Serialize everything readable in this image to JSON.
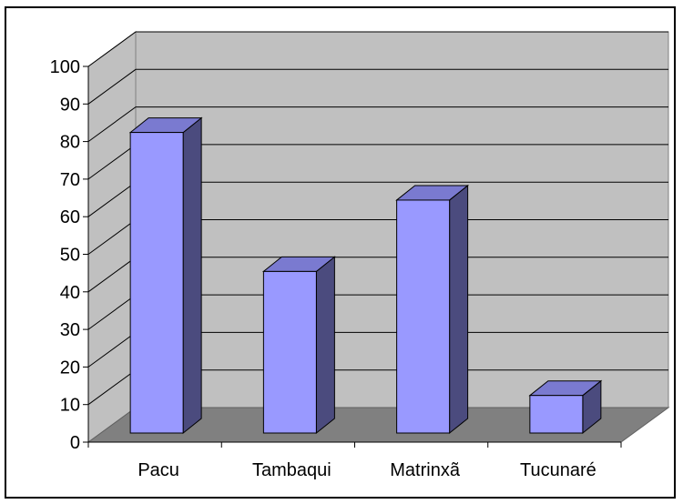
{
  "chart_data": {
    "type": "bar",
    "categories": [
      "Pacu",
      "Tambaqui",
      "Matrinxã",
      "Tucunaré"
    ],
    "values": [
      80,
      43,
      62,
      10
    ],
    "ylim": [
      0,
      100
    ],
    "yticks": [
      0,
      10,
      20,
      30,
      40,
      50,
      60,
      70,
      80,
      90,
      100
    ],
    "title": "",
    "xlabel": "",
    "ylabel": "",
    "grid": true,
    "legend": "none",
    "style": "3d-column",
    "colors": {
      "bar_front": "#9999ff",
      "bar_side": "#4b4b7e",
      "bar_top": "#7a7ad0",
      "wall": "#c0c0c0",
      "floor": "#808080",
      "gridline": "#000000"
    }
  }
}
